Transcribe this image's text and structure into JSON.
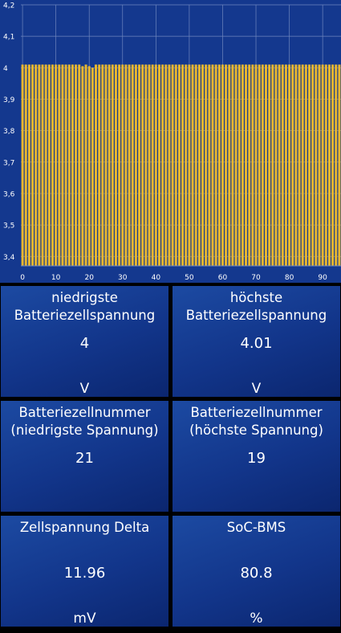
{
  "chart_data": {
    "type": "bar",
    "x": [
      0,
      1,
      2,
      3,
      4,
      5,
      6,
      7,
      8,
      9,
      10,
      11,
      12,
      13,
      14,
      15,
      16,
      17,
      18,
      19,
      20,
      21,
      22,
      23,
      24,
      25,
      26,
      27,
      28,
      29,
      30,
      31,
      32,
      33,
      34,
      35,
      36,
      37,
      38,
      39,
      40,
      41,
      42,
      43,
      44,
      45,
      46,
      47,
      48,
      49,
      50,
      51,
      52,
      53,
      54,
      55,
      56,
      57,
      58,
      59,
      60,
      61,
      62,
      63,
      64,
      65,
      66,
      67,
      68,
      69,
      70,
      71,
      72,
      73,
      74,
      75,
      76,
      77,
      78,
      79,
      80,
      81,
      82,
      83,
      84,
      85,
      86,
      87,
      88,
      89,
      90,
      91,
      92,
      93,
      94,
      95
    ],
    "values": [
      4.01,
      4.01,
      4.01,
      4.01,
      4.01,
      4.01,
      4.01,
      4.01,
      4.01,
      4.01,
      4.01,
      4.01,
      4.01,
      4.01,
      4.01,
      4.01,
      4.01,
      4.01,
      4.005,
      4.01,
      4.005,
      4.0,
      4.01,
      4.01,
      4.01,
      4.01,
      4.01,
      4.01,
      4.01,
      4.01,
      4.01,
      4.01,
      4.01,
      4.01,
      4.01,
      4.01,
      4.01,
      4.01,
      4.01,
      4.01,
      4.01,
      4.01,
      4.01,
      4.01,
      4.01,
      4.01,
      4.01,
      4.01,
      4.01,
      4.01,
      4.01,
      4.01,
      4.01,
      4.01,
      4.01,
      4.01,
      4.01,
      4.01,
      4.01,
      4.01,
      4.01,
      4.01,
      4.01,
      4.01,
      4.01,
      4.01,
      4.01,
      4.01,
      4.01,
      4.01,
      4.01,
      4.01,
      4.01,
      4.01,
      4.01,
      4.01,
      4.01,
      4.01,
      4.01,
      4.01,
      4.01,
      4.01,
      4.01,
      4.01,
      4.01,
      4.01,
      4.01,
      4.01,
      4.01,
      4.01,
      4.01,
      4.01,
      4.01,
      4.01,
      4.01,
      4.01
    ],
    "xlim": [
      -0.5,
      95.5
    ],
    "ylim": [
      3.37,
      4.2
    ],
    "xticks": [
      0,
      10,
      20,
      30,
      40,
      50,
      60,
      70,
      80,
      90
    ],
    "yticks": [
      3.4,
      3.5,
      3.6,
      3.7,
      3.8,
      3.9,
      4.0,
      4.1,
      4.2
    ],
    "ytick_labels": [
      "3,4",
      "3,5",
      "3,6",
      "3,7",
      "3,8",
      "3,9",
      "4",
      "4,1",
      "4,2"
    ],
    "grid": true,
    "colors": {
      "bar": "#e8b730",
      "background": "#14388e",
      "grid": "#6f86bd",
      "text": "#ffffff"
    }
  },
  "panels": [
    {
      "title": "niedrigste\nBatteriezellspannung",
      "value": "4",
      "unit": "V"
    },
    {
      "title": "höchste\nBatteriezellspannung",
      "value": "4.01",
      "unit": "V"
    },
    {
      "title": "Batteriezellnummer\n(niedrigste Spannung)",
      "value": "21",
      "unit": ""
    },
    {
      "title": "Batteriezellnummer\n(höchste Spannung)",
      "value": "19",
      "unit": ""
    },
    {
      "title": "Zellspannung Delta",
      "value": "11.96",
      "unit": "mV"
    },
    {
      "title": "SoC-BMS",
      "value": "80.8",
      "unit": "%"
    }
  ]
}
